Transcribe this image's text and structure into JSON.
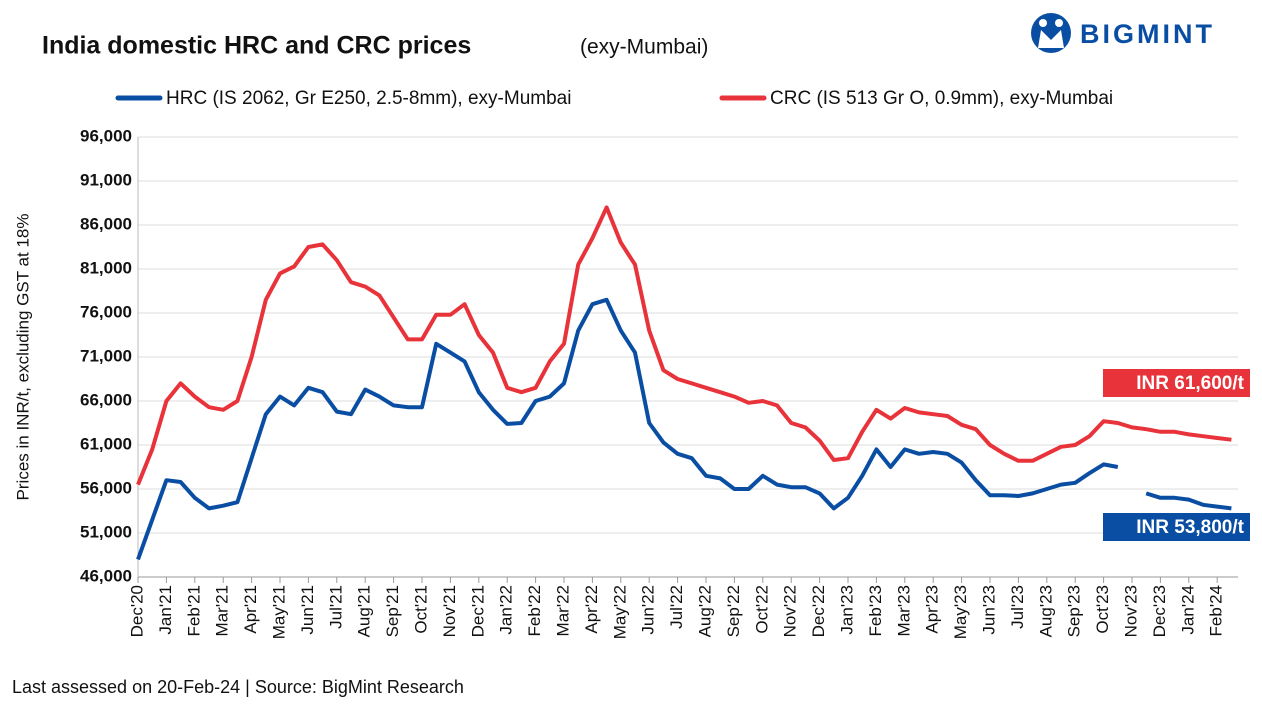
{
  "chart_data": {
    "type": "line",
    "title": "India domestic HRC and CRC prices",
    "subtitle": "(exy-Mumbai)",
    "logo": "BIGMINT",
    "y_label": "Prices in INR/t, excluding GST at 18%",
    "footer": "Last assessed on 20-Feb-24  |  Source: BigMint Research",
    "categories": [
      "Dec'20",
      null,
      "Jan'21",
      null,
      "Feb'21",
      null,
      "Mar'21",
      null,
      "Apr'21",
      null,
      "May'21",
      null,
      "Jun'21",
      null,
      "Jul'21",
      null,
      "Aug'21",
      null,
      "Sep'21",
      null,
      "Oct'21",
      null,
      "Nov'21",
      null,
      "Dec'21",
      null,
      "Jan'22",
      null,
      "Feb'22",
      null,
      "Mar'22",
      null,
      "Apr'22",
      null,
      "May'22",
      null,
      "Jun'22",
      null,
      "Jul'22",
      null,
      "Aug'22",
      null,
      "Sep'22",
      null,
      "Oct'22",
      null,
      "Nov'22",
      null,
      "Dec'22",
      null,
      "Jan'23",
      null,
      "Feb'23",
      null,
      "Mar'23",
      null,
      "Apr'23",
      null,
      "May'23",
      null,
      "Jun'23",
      null,
      "Jul'23",
      null,
      "Aug'23",
      null,
      "Sep'23",
      null,
      "Oct'23",
      null,
      "Nov'23",
      null,
      "Dec'23",
      null,
      "Jan'24",
      null,
      "Feb'24",
      null
    ],
    "series": [
      {
        "name": "HRC (IS 2062, Gr E250, 2.5-8mm), exy-Mumbai",
        "color": "#0a4ea3",
        "values": [
          48000,
          52500,
          57000,
          56800,
          55000,
          53800,
          54100,
          54500,
          59500,
          64500,
          66500,
          65500,
          67500,
          67000,
          64800,
          64500,
          67300,
          66500,
          65500,
          65300,
          65300,
          72500,
          71500,
          70500,
          67000,
          65000,
          63400,
          63500,
          66000,
          66500,
          68000,
          74000,
          77000,
          77500,
          74000,
          71500,
          63500,
          61300,
          60000,
          59500,
          57500,
          57200,
          56000,
          56000,
          57500,
          56500,
          56200,
          56200,
          55500,
          53800,
          55000,
          57500,
          60500,
          58500,
          60500,
          60000,
          60200,
          60000,
          59000,
          57000,
          55300,
          55300,
          55200,
          55500,
          56000,
          56500,
          56700,
          57800,
          58800,
          58500,
          null,
          55500,
          55000,
          55000,
          54800,
          54200,
          54000,
          53800
        ]
      },
      {
        "name": "CRC (IS 513 Gr O, 0.9mm), exy-Mumbai",
        "color": "#e8333a",
        "values": [
          56500,
          60500,
          66000,
          68000,
          66500,
          65300,
          65000,
          66000,
          71000,
          77500,
          80500,
          81300,
          83500,
          83800,
          82000,
          79500,
          79000,
          78000,
          75500,
          73000,
          73000,
          75800,
          75800,
          77000,
          73500,
          71500,
          67500,
          67000,
          67500,
          70500,
          72500,
          81500,
          84500,
          88000,
          84000,
          81500,
          74000,
          69500,
          68500,
          68000,
          67500,
          67000,
          66500,
          65800,
          66000,
          65500,
          63500,
          63000,
          61500,
          59300,
          59500,
          62500,
          65000,
          64000,
          65200,
          64700,
          64500,
          64300,
          63300,
          62800,
          61000,
          60000,
          59200,
          59200,
          60000,
          60800,
          61000,
          62000,
          63700,
          63500,
          63000,
          62800,
          62500,
          62500,
          62200,
          62000,
          61800,
          61600
        ]
      }
    ],
    "annotations": [
      {
        "text": "INR 61,600/t",
        "color": "#e8333a"
      },
      {
        "text": "INR 53,800/t",
        "color": "#0a4ea3"
      }
    ],
    "ylim": [
      46000,
      96000
    ],
    "yticks": [
      {
        "value": 46000,
        "label": "46,000"
      },
      {
        "value": 51000,
        "label": "51,000"
      },
      {
        "value": 56000,
        "label": "56,000"
      },
      {
        "value": 61000,
        "label": "61,000"
      },
      {
        "value": 66000,
        "label": "66,000"
      },
      {
        "value": 71000,
        "label": "71,000"
      },
      {
        "value": 76000,
        "label": "76,000"
      },
      {
        "value": 81000,
        "label": "81,000"
      },
      {
        "value": 86000,
        "label": "86,000"
      },
      {
        "value": 91000,
        "label": "91,000"
      },
      {
        "value": 96000,
        "label": "96,000"
      }
    ],
    "grid": true
  }
}
